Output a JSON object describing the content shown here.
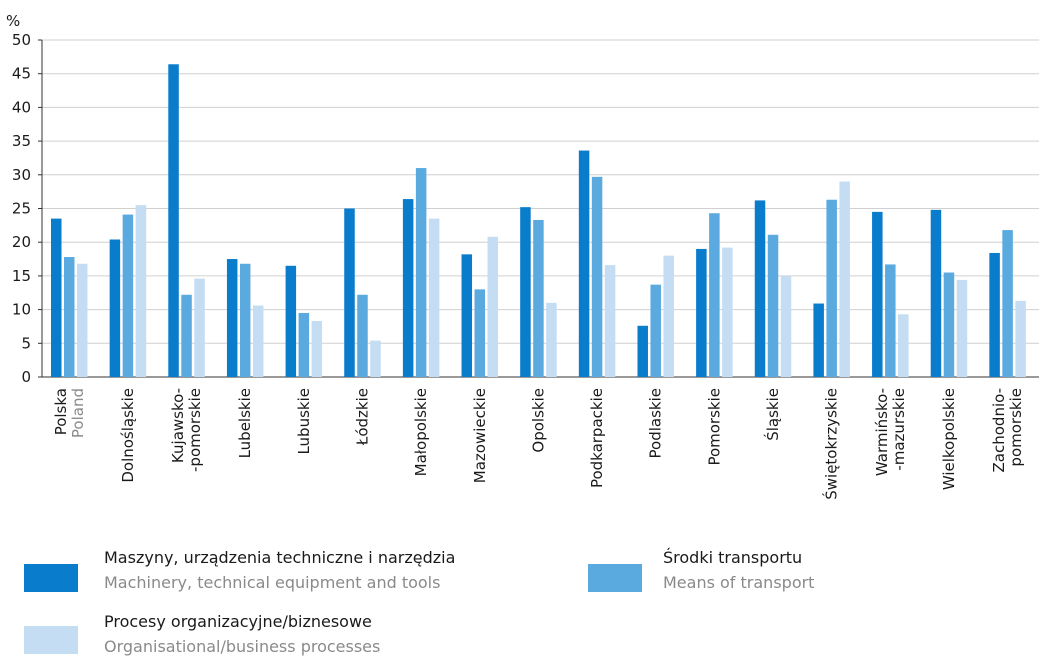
{
  "colors": {
    "machinery": "#0a7ccc",
    "transport": "#5aaae0",
    "processes": "#c4ddf2",
    "grid": "#d0d0d0",
    "axis": "#333333"
  },
  "chart_data": {
    "type": "bar",
    "unit_label": "%",
    "ylim": [
      0,
      50
    ],
    "yticks": [
      0,
      5,
      10,
      15,
      20,
      25,
      30,
      35,
      40,
      45,
      50
    ],
    "grid": true,
    "legend_position": "bottom",
    "categories": [
      {
        "lines": [
          "Polska"
        ],
        "en": "Poland"
      },
      {
        "lines": [
          "Dolnośląskie"
        ],
        "en": ""
      },
      {
        "lines": [
          "Kujawsko-",
          "-pomorskie"
        ],
        "en": ""
      },
      {
        "lines": [
          "Lubelskie"
        ],
        "en": ""
      },
      {
        "lines": [
          "Lubuskie"
        ],
        "en": ""
      },
      {
        "lines": [
          "Łódzkie"
        ],
        "en": ""
      },
      {
        "lines": [
          "Małopolskie"
        ],
        "en": ""
      },
      {
        "lines": [
          "Mazowieckie"
        ],
        "en": ""
      },
      {
        "lines": [
          "Opolskie"
        ],
        "en": ""
      },
      {
        "lines": [
          "Podkarpackie"
        ],
        "en": ""
      },
      {
        "lines": [
          "Podlaskie"
        ],
        "en": ""
      },
      {
        "lines": [
          "Pomorskie"
        ],
        "en": ""
      },
      {
        "lines": [
          "Śląskie"
        ],
        "en": ""
      },
      {
        "lines": [
          "Świętokrzyskie"
        ],
        "en": ""
      },
      {
        "lines": [
          "Warmińsko-",
          "-mazurskie"
        ],
        "en": ""
      },
      {
        "lines": [
          "Wielkopolskie"
        ],
        "en": ""
      },
      {
        "lines": [
          "Zachodnio-",
          "pomorskie"
        ],
        "en": ""
      }
    ],
    "series": [
      {
        "key": "machinery",
        "name": "Maszyny, urządzenia techniczne i narzędzia",
        "name_en": "Machinery, technical equipment and tools",
        "values": [
          23.5,
          20.4,
          46.4,
          17.5,
          16.5,
          25.0,
          26.4,
          18.2,
          25.2,
          33.6,
          7.6,
          19.0,
          26.2,
          10.9,
          24.5,
          24.8,
          18.4
        ]
      },
      {
        "key": "transport",
        "name": "Środki transportu",
        "name_en": "Means of transport",
        "values": [
          17.8,
          24.1,
          12.2,
          16.8,
          9.5,
          12.2,
          31.0,
          13.0,
          23.3,
          29.7,
          13.7,
          24.3,
          21.1,
          26.3,
          16.7,
          15.5,
          21.8
        ]
      },
      {
        "key": "processes",
        "name": "Procesy organizacyjne/biznesowe",
        "name_en": "Organisational/business processes",
        "values": [
          16.8,
          25.5,
          14.6,
          10.6,
          8.3,
          5.4,
          23.5,
          20.8,
          11.0,
          16.6,
          18.0,
          19.2,
          15.0,
          29.0,
          9.3,
          14.4,
          11.3
        ]
      }
    ]
  }
}
